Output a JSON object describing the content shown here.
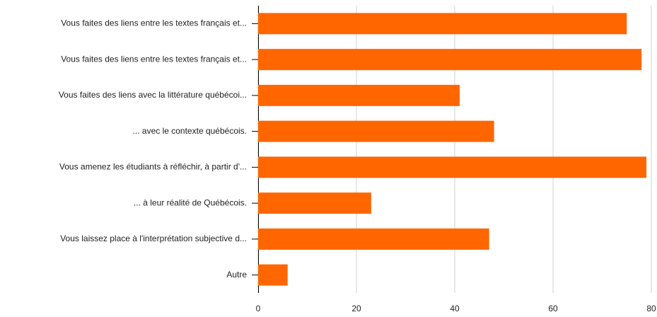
{
  "chart_data": {
    "type": "bar",
    "orientation": "horizontal",
    "categories": [
      "Vous faites des liens entre les textes français et...",
      "Vous faites des liens entre les textes français et...",
      "Vous faites des liens avec la littérature québécoi...",
      "... avec le contexte québécois.",
      "Vous amenez les étudiants à réfléchir, à partir d'...",
      "... à leur réalité de Québécois.",
      "Vous laissez place à l'interprétation subjective d...",
      "Autre"
    ],
    "values": [
      75,
      78,
      41,
      48,
      79,
      23,
      47,
      6
    ],
    "color": "#ff6600",
    "xlim": [
      0,
      80
    ],
    "xticks": [
      0,
      20,
      40,
      60,
      80
    ],
    "grid": true
  }
}
